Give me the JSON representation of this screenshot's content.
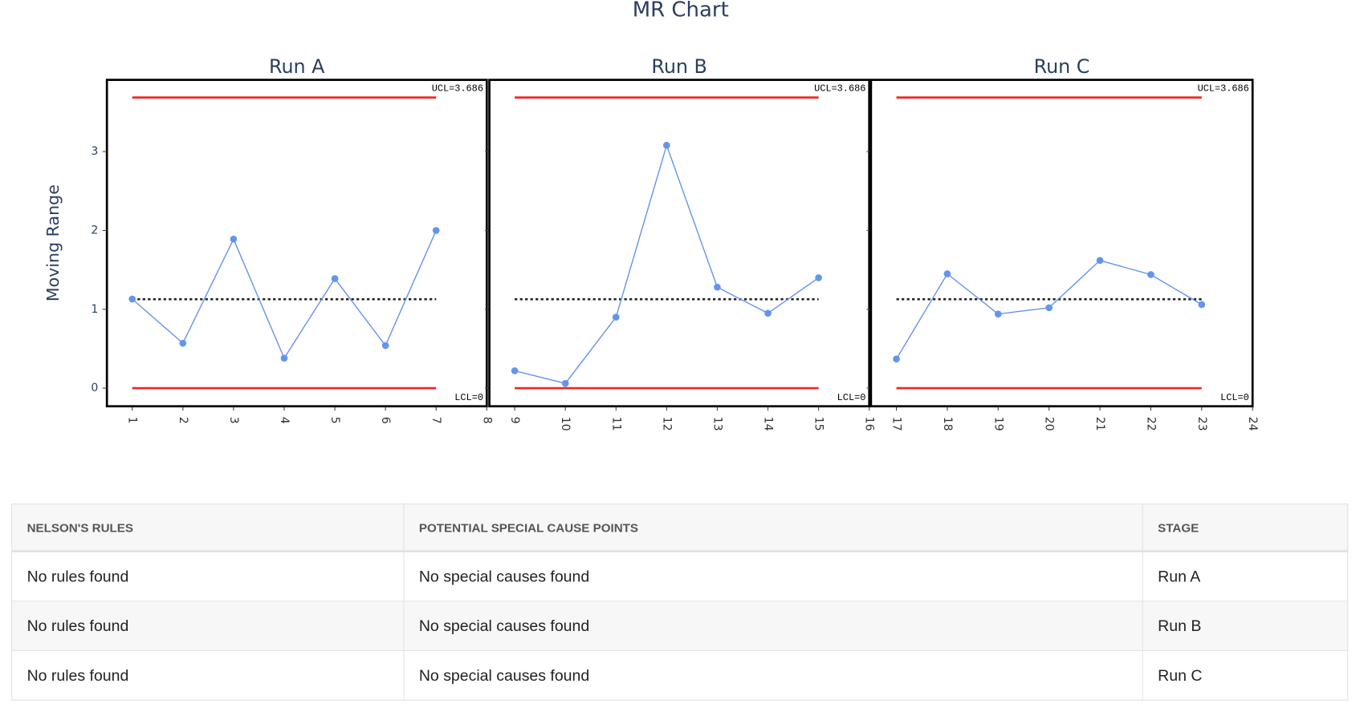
{
  "title": "MR Chart",
  "chart_data": [
    {
      "type": "line",
      "title": "Run A",
      "y_label": "Moving Range",
      "x": [
        1,
        2,
        3,
        4,
        5,
        6,
        7
      ],
      "values": [
        1.13,
        0.57,
        1.89,
        0.38,
        1.39,
        0.54,
        2.0
      ],
      "color": "#6395ec",
      "center": 1.128,
      "ucl": 3.686,
      "lcl": 0,
      "ucl_label": "UCL=3.686",
      "lcl_label": "LCL=0",
      "limit_color": "#ee2a2a",
      "xlim": [
        0.5,
        8
      ],
      "xticks": [
        1,
        2,
        3,
        4,
        5,
        6,
        7,
        8
      ],
      "ylim": [
        -0.23,
        3.91
      ],
      "yticks": [
        0,
        1,
        2,
        3
      ]
    },
    {
      "type": "line",
      "title": "Run B",
      "x": [
        9,
        10,
        11,
        12,
        13,
        14,
        15
      ],
      "values": [
        0.22,
        0.06,
        0.9,
        3.08,
        1.28,
        0.95,
        1.4
      ],
      "color": "#6395ec",
      "center": 1.128,
      "ucl": 3.686,
      "lcl": 0,
      "ucl_label": "UCL=3.686",
      "lcl_label": "LCL=0",
      "limit_color": "#ee2a2a",
      "xlim": [
        8.5,
        16
      ],
      "xticks": [
        9,
        10,
        11,
        12,
        13,
        14,
        15,
        16
      ],
      "ylim": [
        -0.23,
        3.91
      ]
    },
    {
      "type": "line",
      "title": "Run C",
      "x": [
        17,
        18,
        19,
        20,
        21,
        22,
        23
      ],
      "values": [
        0.37,
        1.45,
        0.94,
        1.02,
        1.62,
        1.44,
        1.06
      ],
      "color": "#6395ec",
      "center": 1.128,
      "ucl": 3.686,
      "lcl": 0,
      "ucl_label": "UCL=3.686",
      "lcl_label": "LCL=0",
      "limit_color": "#ee2a2a",
      "xlim": [
        16.5,
        24
      ],
      "xticks": [
        17,
        18,
        19,
        20,
        21,
        22,
        23,
        24
      ],
      "ylim": [
        -0.23,
        3.91
      ]
    }
  ],
  "table": {
    "header": [
      "NELSON'S RULES",
      "POTENTIAL SPECIAL CAUSE POINTS",
      "STAGE"
    ],
    "rows": [
      [
        "No rules found",
        "No special causes found",
        "Run A"
      ],
      [
        "No rules found",
        "No special causes found",
        "Run B"
      ],
      [
        "No rules found",
        "No special causes found",
        "Run C"
      ]
    ]
  }
}
